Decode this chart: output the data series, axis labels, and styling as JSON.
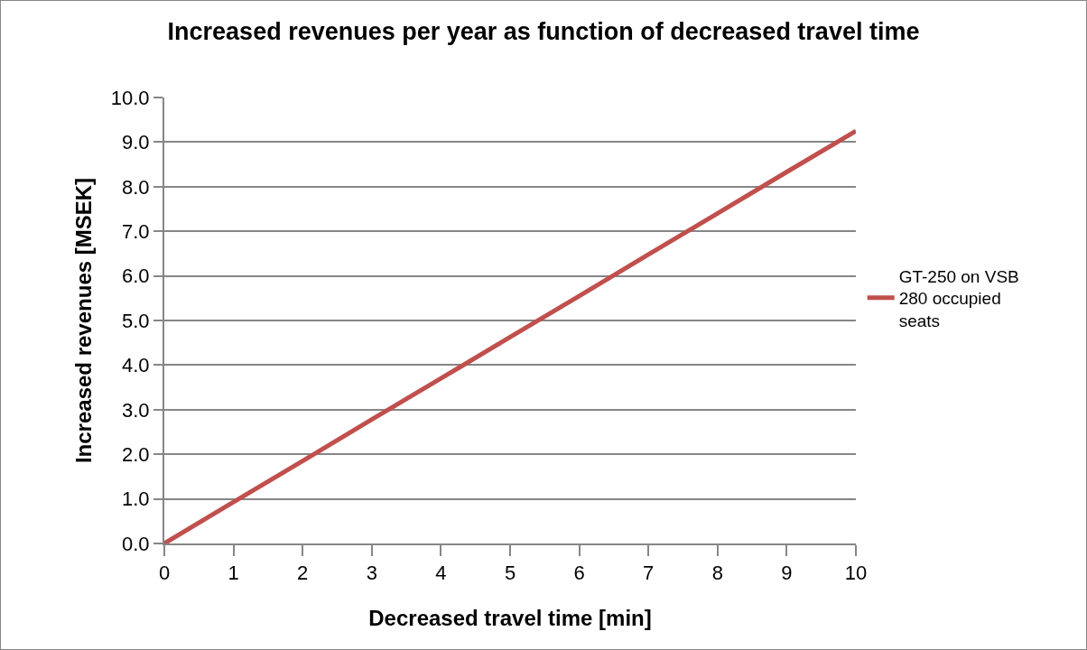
{
  "chart_data": {
    "type": "line",
    "title": "Increased revenues per year as function of decreased travel time",
    "xlabel": "Decreased travel time [min]",
    "ylabel": "Increased revenues [MSEK]",
    "x": [
      0,
      1,
      2,
      3,
      4,
      5,
      6,
      7,
      8,
      9,
      10
    ],
    "series": [
      {
        "name": "GT-250 on VSB 280 occupied seats",
        "color": "#c0504d",
        "values": [
          0,
          0.93,
          1.85,
          2.78,
          3.7,
          4.63,
          5.55,
          6.48,
          7.4,
          8.33,
          9.25
        ]
      }
    ],
    "xlim": [
      0,
      10
    ],
    "xticks": [
      0,
      1,
      2,
      3,
      4,
      5,
      6,
      7,
      8,
      9,
      10
    ],
    "ylim": [
      0,
      10
    ],
    "yticks": [
      {
        "value": 0,
        "label": "0.0"
      },
      {
        "value": 1,
        "label": "1.0"
      },
      {
        "value": 2,
        "label": "2.0"
      },
      {
        "value": 3,
        "label": "3.0"
      },
      {
        "value": 4,
        "label": "4.0"
      },
      {
        "value": 5,
        "label": "5.0"
      },
      {
        "value": 6,
        "label": "6.0"
      },
      {
        "value": 7,
        "label": "7.0"
      },
      {
        "value": 8,
        "label": "8.0"
      },
      {
        "value": 9,
        "label": "9.0"
      },
      {
        "value": 10,
        "label": "10.0"
      }
    ],
    "grid": "y",
    "legend": "right",
    "marker": "none",
    "line_style": "solid"
  }
}
